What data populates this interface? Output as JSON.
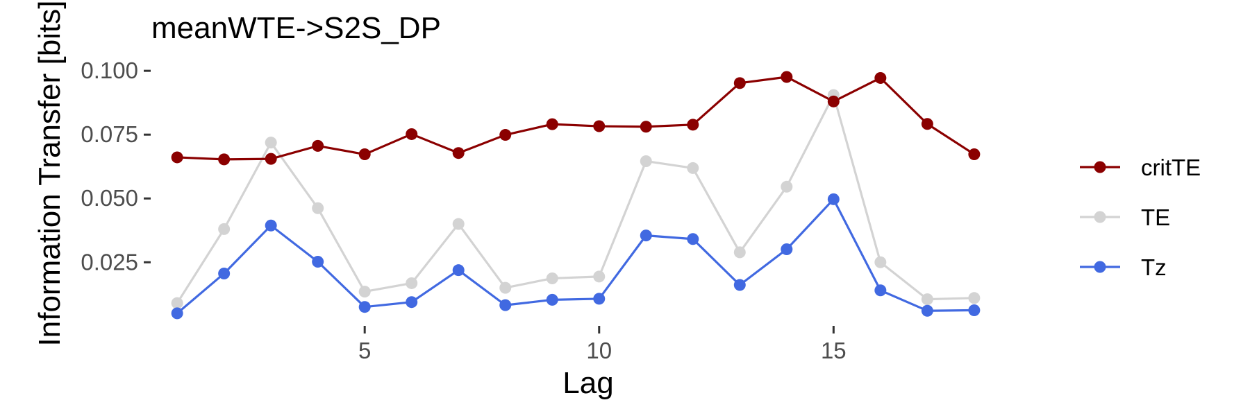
{
  "chart_data": {
    "type": "line",
    "title": "meanWTE->S2S_DP",
    "xlabel": "Lag",
    "ylabel": "Information Transfer [bits]",
    "x": [
      1,
      2,
      3,
      4,
      5,
      6,
      7,
      8,
      9,
      10,
      11,
      12,
      13,
      14,
      15,
      16,
      17,
      18
    ],
    "xlim": [
      0.45,
      18.55
    ],
    "ylim": [
      0.0028,
      0.1033
    ],
    "xticks": [
      "5",
      "10",
      "15"
    ],
    "yticks": [
      "0.025",
      "0.050",
      "0.075",
      "0.100"
    ],
    "grid": false,
    "legend_position": "right",
    "series": [
      {
        "name": "critTE",
        "color": "#8b0000",
        "values": [
          0.0661,
          0.0653,
          0.0655,
          0.0706,
          0.0673,
          0.0752,
          0.0678,
          0.0749,
          0.0791,
          0.0783,
          0.0781,
          0.0789,
          0.0952,
          0.0976,
          0.088,
          0.0972,
          0.0792,
          0.0673
        ]
      },
      {
        "name": "TE",
        "color": "#d3d3d3",
        "values": [
          0.009,
          0.038,
          0.0719,
          0.0462,
          0.0135,
          0.0168,
          0.04,
          0.015,
          0.0187,
          0.0194,
          0.0646,
          0.0619,
          0.0289,
          0.0546,
          0.0905,
          0.025,
          0.0105,
          0.011
        ]
      },
      {
        "name": "Tz",
        "color": "#4169e1",
        "values": [
          0.005,
          0.0206,
          0.0394,
          0.0252,
          0.0075,
          0.0094,
          0.0219,
          0.0082,
          0.0103,
          0.0107,
          0.0355,
          0.0341,
          0.0161,
          0.0301,
          0.0497,
          0.014,
          0.006,
          0.0062
        ]
      }
    ]
  }
}
